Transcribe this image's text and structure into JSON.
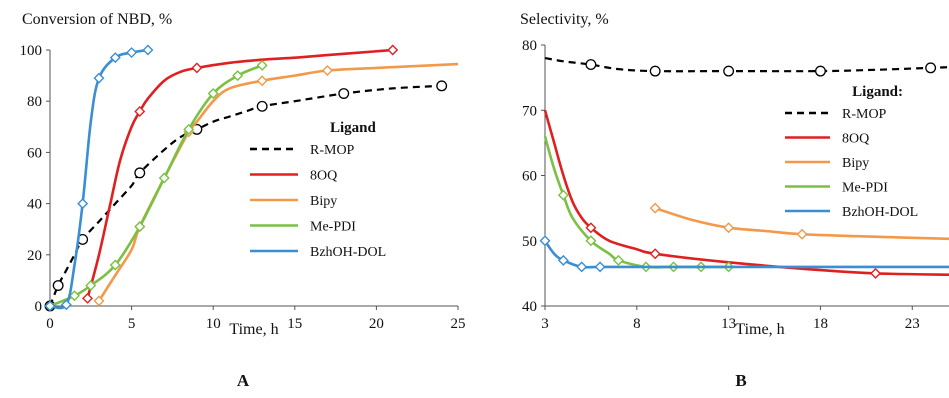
{
  "chart_data": [
    {
      "panel_label": "A",
      "type": "line",
      "title": "Conversion of NBD, %",
      "xlabel": "Time, h",
      "ylabel": "",
      "xlim": [
        0,
        25
      ],
      "ylim": [
        0,
        100
      ],
      "xticks": [
        0,
        5,
        10,
        15,
        20,
        25
      ],
      "yticks": [
        0,
        20,
        40,
        60,
        80,
        100
      ],
      "grid": false,
      "legend_title": "Ligand",
      "legend_position": "right-middle",
      "series": [
        {
          "name": "R-MOP",
          "color": "#000000",
          "dash": true,
          "marker": "circle",
          "curve": [
            [
              0,
              0
            ],
            [
              0.5,
              8
            ],
            [
              1,
              14
            ],
            [
              1.5,
              20
            ],
            [
              2,
              26
            ],
            [
              3,
              33
            ],
            [
              4,
              40
            ],
            [
              5,
              47
            ],
            [
              5.5,
              52
            ],
            [
              7,
              61
            ],
            [
              8,
              66
            ],
            [
              9,
              69
            ],
            [
              10,
              72
            ],
            [
              11,
              74
            ],
            [
              12,
              76
            ],
            [
              13,
              78
            ],
            [
              15,
              80
            ],
            [
              18,
              83
            ],
            [
              21,
              85
            ],
            [
              24,
              86
            ]
          ],
          "markers": [
            [
              0,
              0
            ],
            [
              0.5,
              8
            ],
            [
              2,
              26
            ],
            [
              5.5,
              52
            ],
            [
              9,
              69
            ],
            [
              13,
              78
            ],
            [
              18,
              83
            ],
            [
              24,
              86
            ]
          ]
        },
        {
          "name": "8OQ",
          "color": "#e02020",
          "dash": false,
          "marker": "diamond",
          "curve": [
            [
              2.3,
              3
            ],
            [
              3,
              20
            ],
            [
              3.7,
              40
            ],
            [
              4.3,
              57
            ],
            [
              5,
              70
            ],
            [
              5.5,
              76
            ],
            [
              6,
              81
            ],
            [
              7,
              88
            ],
            [
              8,
              91.5
            ],
            [
              9,
              93
            ],
            [
              11,
              95
            ],
            [
              13,
              96.2
            ],
            [
              15,
              97
            ],
            [
              17,
              98
            ],
            [
              19,
              99
            ],
            [
              21,
              100
            ]
          ],
          "markers": [
            [
              2.3,
              3
            ],
            [
              5.5,
              76
            ],
            [
              9,
              93
            ],
            [
              21,
              100
            ]
          ]
        },
        {
          "name": "Bipy",
          "color": "#f2994a",
          "dash": false,
          "marker": "diamond",
          "curve": [
            [
              3,
              2
            ],
            [
              4,
              12
            ],
            [
              5,
              22
            ],
            [
              5.5,
              31
            ],
            [
              7,
              50
            ],
            [
              8.5,
              68
            ],
            [
              9,
              72
            ],
            [
              10,
              80
            ],
            [
              11,
              85
            ],
            [
              13,
              88
            ],
            [
              15,
              90
            ],
            [
              17,
              92
            ],
            [
              20,
              93
            ],
            [
              25,
              94.5
            ]
          ],
          "markers": [
            [
              3,
              2
            ],
            [
              5.5,
              31
            ],
            [
              8.5,
              68
            ],
            [
              13,
              88
            ],
            [
              17,
              92
            ]
          ]
        },
        {
          "name": "Me-PDI",
          "color": "#7ac143",
          "dash": false,
          "marker": "diamond",
          "curve": [
            [
              0,
              0
            ],
            [
              1.5,
              4
            ],
            [
              2.5,
              8
            ],
            [
              4,
              16
            ],
            [
              5.5,
              31
            ],
            [
              7,
              50
            ],
            [
              8.5,
              69
            ],
            [
              10,
              83
            ],
            [
              11.5,
              90
            ],
            [
              13,
              94
            ]
          ],
          "markers": [
            [
              0,
              0
            ],
            [
              1.5,
              4
            ],
            [
              2.5,
              8
            ],
            [
              4,
              16
            ],
            [
              5.5,
              31
            ],
            [
              7,
              50
            ],
            [
              8.5,
              69
            ],
            [
              10,
              83
            ],
            [
              11.5,
              90
            ],
            [
              13,
              94
            ]
          ]
        },
        {
          "name": "BzhOH-DOL",
          "color": "#3a8ed4",
          "dash": false,
          "marker": "diamond",
          "curve": [
            [
              0,
              0
            ],
            [
              1,
              0.5
            ],
            [
              1.5,
              16
            ],
            [
              2,
              40
            ],
            [
              2.5,
              72
            ],
            [
              3,
              89
            ],
            [
              4,
              97
            ],
            [
              5,
              99
            ],
            [
              6,
              100
            ]
          ],
          "markers": [
            [
              0,
              0
            ],
            [
              1,
              0.5
            ],
            [
              2,
              40
            ],
            [
              3,
              89
            ],
            [
              4,
              97
            ],
            [
              5,
              99
            ],
            [
              6,
              100
            ]
          ]
        }
      ]
    },
    {
      "panel_label": "B",
      "type": "line",
      "title": "Selectivity, %",
      "xlabel": "Time, h",
      "ylabel": "",
      "xlim": [
        3,
        25
      ],
      "ylim": [
        40,
        80
      ],
      "xticks": [
        3,
        8,
        13,
        18,
        23
      ],
      "yticks": [
        40,
        50,
        60,
        70,
        80
      ],
      "grid": false,
      "legend_title": "Ligand:",
      "legend_position": "top-right",
      "series": [
        {
          "name": "R-MOP",
          "color": "#000000",
          "dash": true,
          "marker": "circle",
          "curve": [
            [
              3,
              78
            ],
            [
              4,
              77.5
            ],
            [
              5.5,
              77
            ],
            [
              7,
              76.3
            ],
            [
              9,
              76
            ],
            [
              13,
              76
            ],
            [
              18,
              76
            ],
            [
              21,
              76.2
            ],
            [
              24,
              76.5
            ],
            [
              25,
              76.6
            ]
          ],
          "markers": [
            [
              5.5,
              77
            ],
            [
              9,
              76
            ],
            [
              13,
              76
            ],
            [
              18,
              76
            ],
            [
              24,
              76.5
            ]
          ]
        },
        {
          "name": "8OQ",
          "color": "#e02020",
          "dash": false,
          "marker": "diamond",
          "curve": [
            [
              3,
              70
            ],
            [
              3.5,
              65
            ],
            [
              4,
              60
            ],
            [
              4.5,
              56
            ],
            [
              5,
              53.5
            ],
            [
              5.5,
              52
            ],
            [
              6.5,
              50
            ],
            [
              8,
              48.7
            ],
            [
              9,
              48
            ],
            [
              13,
              46.7
            ],
            [
              18,
              45.5
            ],
            [
              21,
              45
            ],
            [
              25,
              44.8
            ]
          ],
          "markers": [
            [
              5.5,
              52
            ],
            [
              9,
              48
            ],
            [
              21,
              45
            ]
          ]
        },
        {
          "name": "Bipy",
          "color": "#f2994a",
          "dash": false,
          "marker": "diamond",
          "curve": [
            [
              9,
              55
            ],
            [
              11,
              53.2
            ],
            [
              13,
              52
            ],
            [
              15,
              51.5
            ],
            [
              17,
              51
            ],
            [
              20,
              50.7
            ],
            [
              25,
              50.3
            ]
          ],
          "markers": [
            [
              9,
              55
            ],
            [
              13,
              52
            ],
            [
              17,
              51
            ]
          ]
        },
        {
          "name": "Me-PDI",
          "color": "#7ac143",
          "dash": false,
          "marker": "diamond",
          "curve": [
            [
              3,
              66
            ],
            [
              3.5,
              61
            ],
            [
              4,
              57
            ],
            [
              4.5,
              53.5
            ],
            [
              5.5,
              50
            ],
            [
              6.5,
              48
            ],
            [
              7,
              47
            ],
            [
              8.5,
              46
            ],
            [
              10,
              46
            ],
            [
              13,
              46
            ]
          ],
          "markers": [
            [
              4,
              57
            ],
            [
              5.5,
              50
            ],
            [
              7,
              47
            ],
            [
              8.5,
              46
            ],
            [
              10,
              46
            ],
            [
              11.5,
              46
            ],
            [
              13,
              46
            ]
          ]
        },
        {
          "name": "BzhOH-DOL",
          "color": "#3a8ed4",
          "dash": false,
          "marker": "diamond",
          "curve": [
            [
              3,
              50
            ],
            [
              3.5,
              48
            ],
            [
              4,
              47
            ],
            [
              5,
              46
            ],
            [
              6,
              46
            ],
            [
              10,
              46
            ],
            [
              15,
              46
            ],
            [
              20,
              46
            ],
            [
              25,
              46
            ]
          ],
          "markers": [
            [
              3,
              50
            ],
            [
              4,
              47
            ],
            [
              5,
              46
            ],
            [
              6,
              46
            ]
          ]
        }
      ]
    }
  ]
}
